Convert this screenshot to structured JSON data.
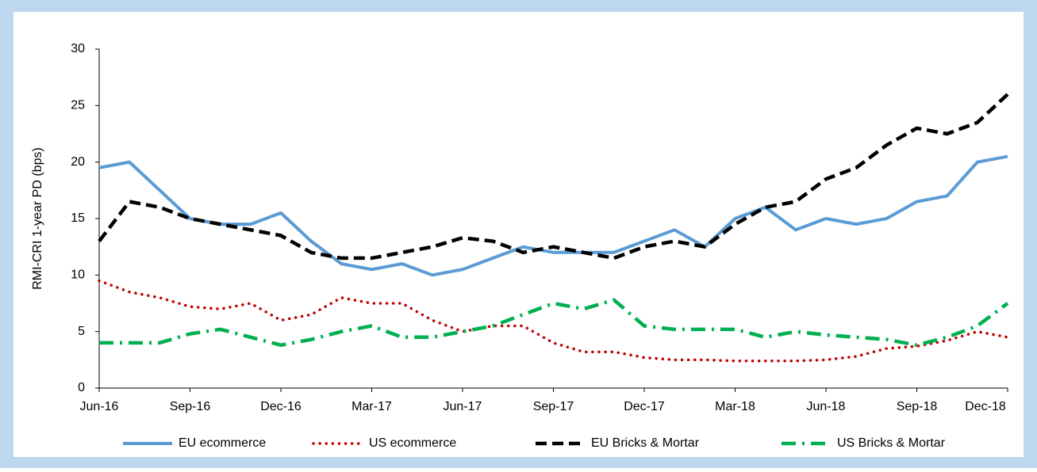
{
  "chart_data": {
    "type": "line",
    "y_label": "RMI-CRI 1-year PD (bps)",
    "categories": [
      "Jun-16",
      null,
      null,
      "Sep-16",
      null,
      null,
      "Dec-16",
      null,
      null,
      "Mar-17",
      null,
      null,
      "Jun-17",
      null,
      null,
      "Sep-17",
      null,
      null,
      "Dec-17",
      null,
      null,
      "Mar-18",
      null,
      null,
      "Jun-18",
      null,
      null,
      "Sep-18",
      null,
      null,
      "Dec-18"
    ],
    "ylim": [
      0,
      30
    ],
    "yticks": [
      0,
      5,
      10,
      15,
      20,
      25,
      30
    ],
    "grid": false,
    "legend": "bottom",
    "series": [
      {
        "name": "EU ecommerce",
        "color": "#5b9bd5",
        "style": "solid",
        "values": [
          19.5,
          20,
          17.5,
          15,
          14.5,
          14.5,
          15.5,
          13,
          11,
          10.5,
          11,
          10,
          10.5,
          11.5,
          12.5,
          12,
          12,
          12,
          13,
          14,
          12.5,
          15,
          16,
          14,
          15,
          14.5,
          15,
          16.5,
          17,
          20,
          20.5
        ]
      },
      {
        "name": "US ecommerce",
        "color": "#c00000",
        "style": "dotted",
        "values": [
          9.5,
          8.5,
          8,
          7.2,
          7,
          7.5,
          6,
          6.5,
          8,
          7.5,
          7.5,
          6,
          5,
          5.5,
          5.5,
          4,
          3.2,
          3.2,
          2.7,
          2.5,
          2.5,
          2.4,
          2.4,
          2.4,
          2.5,
          2.8,
          3.5,
          3.7,
          4.2,
          5,
          4.5
        ]
      },
      {
        "name": "EU Bricks & Mortar",
        "color": "#000000",
        "style": "dashed",
        "values": [
          13,
          16.5,
          16,
          15,
          14.5,
          14,
          13.5,
          12,
          11.5,
          11.5,
          12,
          12.5,
          13.3,
          13,
          12,
          12.5,
          12,
          11.5,
          12.5,
          13,
          12.5,
          14.5,
          16,
          16.5,
          18.5,
          19.5,
          21.5,
          23,
          22.5,
          23.5,
          26
        ]
      },
      {
        "name": "US Bricks & Mortar",
        "color": "#00b050",
        "style": "dashdot",
        "values": [
          4,
          4,
          4,
          4.8,
          5.2,
          4.5,
          3.8,
          4.3,
          5,
          5.5,
          4.5,
          4.5,
          5,
          5.5,
          6.5,
          7.5,
          7,
          7.8,
          5.5,
          5.2,
          5.2,
          5.2,
          4.5,
          5,
          4.7,
          4.5,
          4.3,
          3.8,
          4.5,
          5.5,
          7.5
        ]
      }
    ]
  }
}
